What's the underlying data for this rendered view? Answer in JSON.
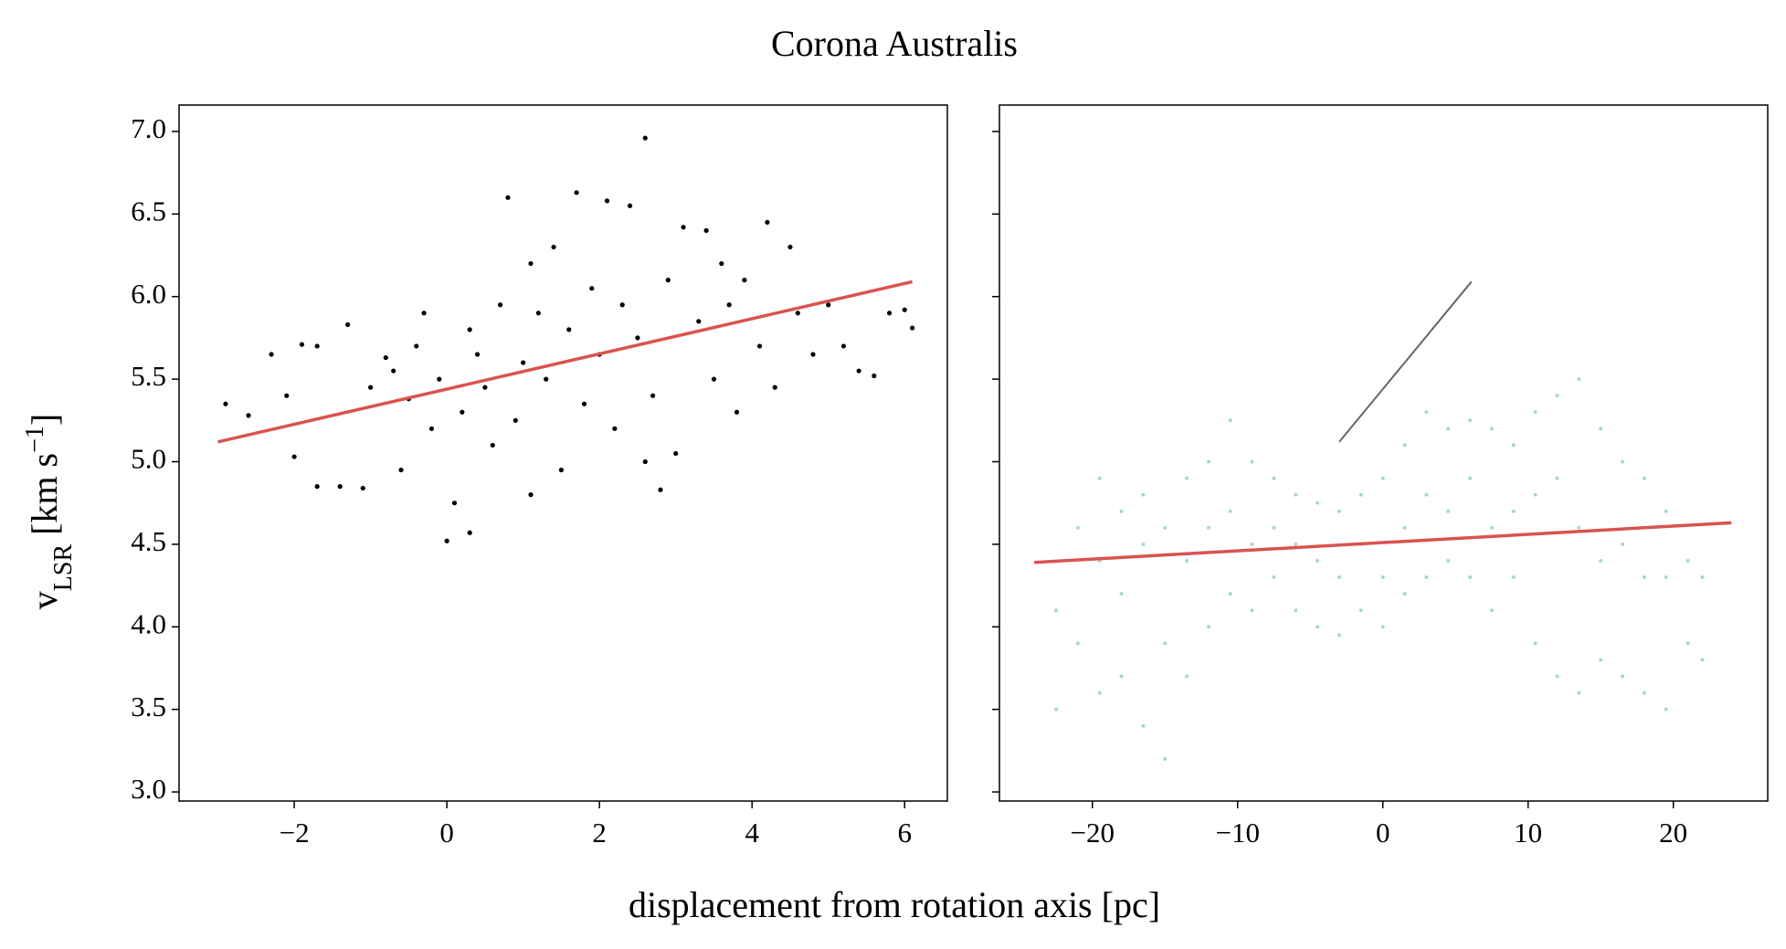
{
  "title": "Corona Australis",
  "x_label": "displacement from rotation axis [pc]",
  "y_label": [
    "v",
    "LSR",
    " [km s",
    "−1",
    "]"
  ],
  "chart_data": [
    {
      "type": "scatter",
      "xlim": [
        -3.51,
        6.56
      ],
      "ylim": [
        2.945,
        7.16
      ],
      "xticks": [
        {
          "value": -2,
          "label": "−2"
        },
        0,
        2,
        4,
        6
      ],
      "yticks": [
        {
          "value": 3.0,
          "label": "3.0"
        },
        3.5,
        {
          "value": 4.0,
          "label": "4.0"
        },
        4.5,
        {
          "value": 5.0,
          "label": "5.0"
        },
        5.5,
        {
          "value": 6.0,
          "label": "6.0"
        },
        6.5,
        {
          "value": 7.0,
          "label": "7.0"
        }
      ],
      "points": {
        "color": "#000000",
        "x": [
          -2.9,
          -2.6,
          -2.3,
          -2.1,
          -2.0,
          -1.9,
          -1.7,
          -1.7,
          -1.4,
          -1.3,
          -1.1,
          -1.0,
          -0.8,
          -0.6,
          -0.5,
          -0.4,
          -0.3,
          -0.2,
          -0.1,
          0.0,
          0.1,
          0.2,
          0.3,
          0.3,
          0.5,
          0.6,
          0.7,
          0.8,
          0.9,
          1.0,
          1.1,
          1.1,
          1.3,
          1.4,
          1.5,
          1.6,
          1.7,
          1.8,
          1.9,
          2.0,
          2.1,
          2.2,
          2.3,
          2.4,
          2.5,
          2.6,
          2.7,
          2.8,
          2.9,
          3.0,
          3.1,
          3.3,
          3.4,
          3.5,
          3.7,
          3.8,
          3.9,
          4.1,
          4.2,
          4.3,
          4.5,
          4.6,
          4.8,
          5.0,
          5.2,
          5.4,
          5.6,
          5.8,
          6.0,
          6.1,
          -0.7,
          0.4,
          1.2,
          2.6,
          3.6
        ],
        "y": [
          5.35,
          5.28,
          5.65,
          5.4,
          5.03,
          5.71,
          5.7,
          4.85,
          4.85,
          5.83,
          4.84,
          5.45,
          5.63,
          4.95,
          5.38,
          5.7,
          5.9,
          5.2,
          5.5,
          4.52,
          4.75,
          5.3,
          4.57,
          5.8,
          5.45,
          5.1,
          5.95,
          6.6,
          5.25,
          5.6,
          4.8,
          6.2,
          5.5,
          6.3,
          4.95,
          5.8,
          6.63,
          5.35,
          6.05,
          5.65,
          6.58,
          5.2,
          5.95,
          6.55,
          5.75,
          6.96,
          5.4,
          4.83,
          6.1,
          5.05,
          6.42,
          5.85,
          6.4,
          5.5,
          5.95,
          5.3,
          6.1,
          5.7,
          6.45,
          5.45,
          6.3,
          5.9,
          5.65,
          5.95,
          5.7,
          5.55,
          5.52,
          5.9,
          5.92,
          5.81,
          5.55,
          5.65,
          5.9,
          5.0,
          6.2
        ]
      },
      "fit": {
        "color": "#d9534f",
        "x": [
          -3.0,
          6.1
        ],
        "y": [
          5.12,
          6.09
        ]
      }
    },
    {
      "type": "scatter",
      "xlim": [
        -26.4,
        26.5
      ],
      "ylim": [
        2.945,
        7.16
      ],
      "xticks": [
        {
          "value": -20,
          "label": "−20"
        },
        {
          "value": -10,
          "label": "−10"
        },
        0,
        10,
        20
      ],
      "yticks": [
        3.0,
        3.5,
        4.0,
        4.5,
        5.0,
        5.5,
        6.0,
        6.5,
        7.0
      ],
      "points": {
        "color": "#66c2a5",
        "x": [
          -22.5,
          -22.5,
          -21,
          -21,
          -19.5,
          -19.5,
          -19.5,
          -18,
          -18,
          -18,
          -16.5,
          -16.5,
          -16.5,
          -15,
          -15,
          -15,
          -13.5,
          -13.5,
          -13.5,
          -12,
          -12,
          -12,
          -10.5,
          -10.5,
          -10.5,
          -9,
          -9,
          -9,
          -7.5,
          -7.5,
          -7.5,
          -6,
          -6,
          -6,
          -4.5,
          -4.5,
          -4.5,
          -3,
          -3,
          -3,
          -1.5,
          -1.5,
          -1.5,
          0,
          0,
          0,
          1.5,
          1.5,
          1.5,
          3,
          3,
          3,
          4.5,
          4.5,
          4.5,
          6,
          6,
          6,
          7.5,
          7.5,
          7.5,
          9,
          9,
          9,
          10.5,
          10.5,
          10.5,
          12,
          12,
          12,
          13.5,
          13.5,
          13.5,
          15,
          15,
          15,
          16.5,
          16.5,
          16.5,
          18,
          18,
          18,
          19.5,
          19.5,
          19.5,
          21,
          21,
          22,
          22
        ],
        "y": [
          4.1,
          3.5,
          4.6,
          3.9,
          4.9,
          4.4,
          3.6,
          4.7,
          4.2,
          3.7,
          4.8,
          4.5,
          3.4,
          4.6,
          3.9,
          3.2,
          4.9,
          4.4,
          3.7,
          5.0,
          4.6,
          4.0,
          5.25,
          4.7,
          4.2,
          5.0,
          4.5,
          4.1,
          4.9,
          4.6,
          4.3,
          4.8,
          4.5,
          4.1,
          4.75,
          4.4,
          4.0,
          4.7,
          4.3,
          3.95,
          4.8,
          4.5,
          4.1,
          4.9,
          4.3,
          4.0,
          5.1,
          4.6,
          4.2,
          5.3,
          4.8,
          4.3,
          5.2,
          4.7,
          4.4,
          5.25,
          4.9,
          4.3,
          5.2,
          4.6,
          4.1,
          5.1,
          4.7,
          4.3,
          5.3,
          4.8,
          3.9,
          5.4,
          4.9,
          3.7,
          5.5,
          4.6,
          3.6,
          5.2,
          4.4,
          3.8,
          5.0,
          4.5,
          3.7,
          4.9,
          4.3,
          3.6,
          4.7,
          4.3,
          3.5,
          4.4,
          3.9,
          4.3,
          3.8
        ]
      },
      "segment": {
        "color": "#666666",
        "x": [
          -3.0,
          6.1
        ],
        "y": [
          5.12,
          6.09
        ]
      },
      "fit": {
        "color": "#d9534f",
        "x": [
          -24,
          24
        ],
        "y": [
          4.39,
          4.63
        ]
      }
    }
  ]
}
